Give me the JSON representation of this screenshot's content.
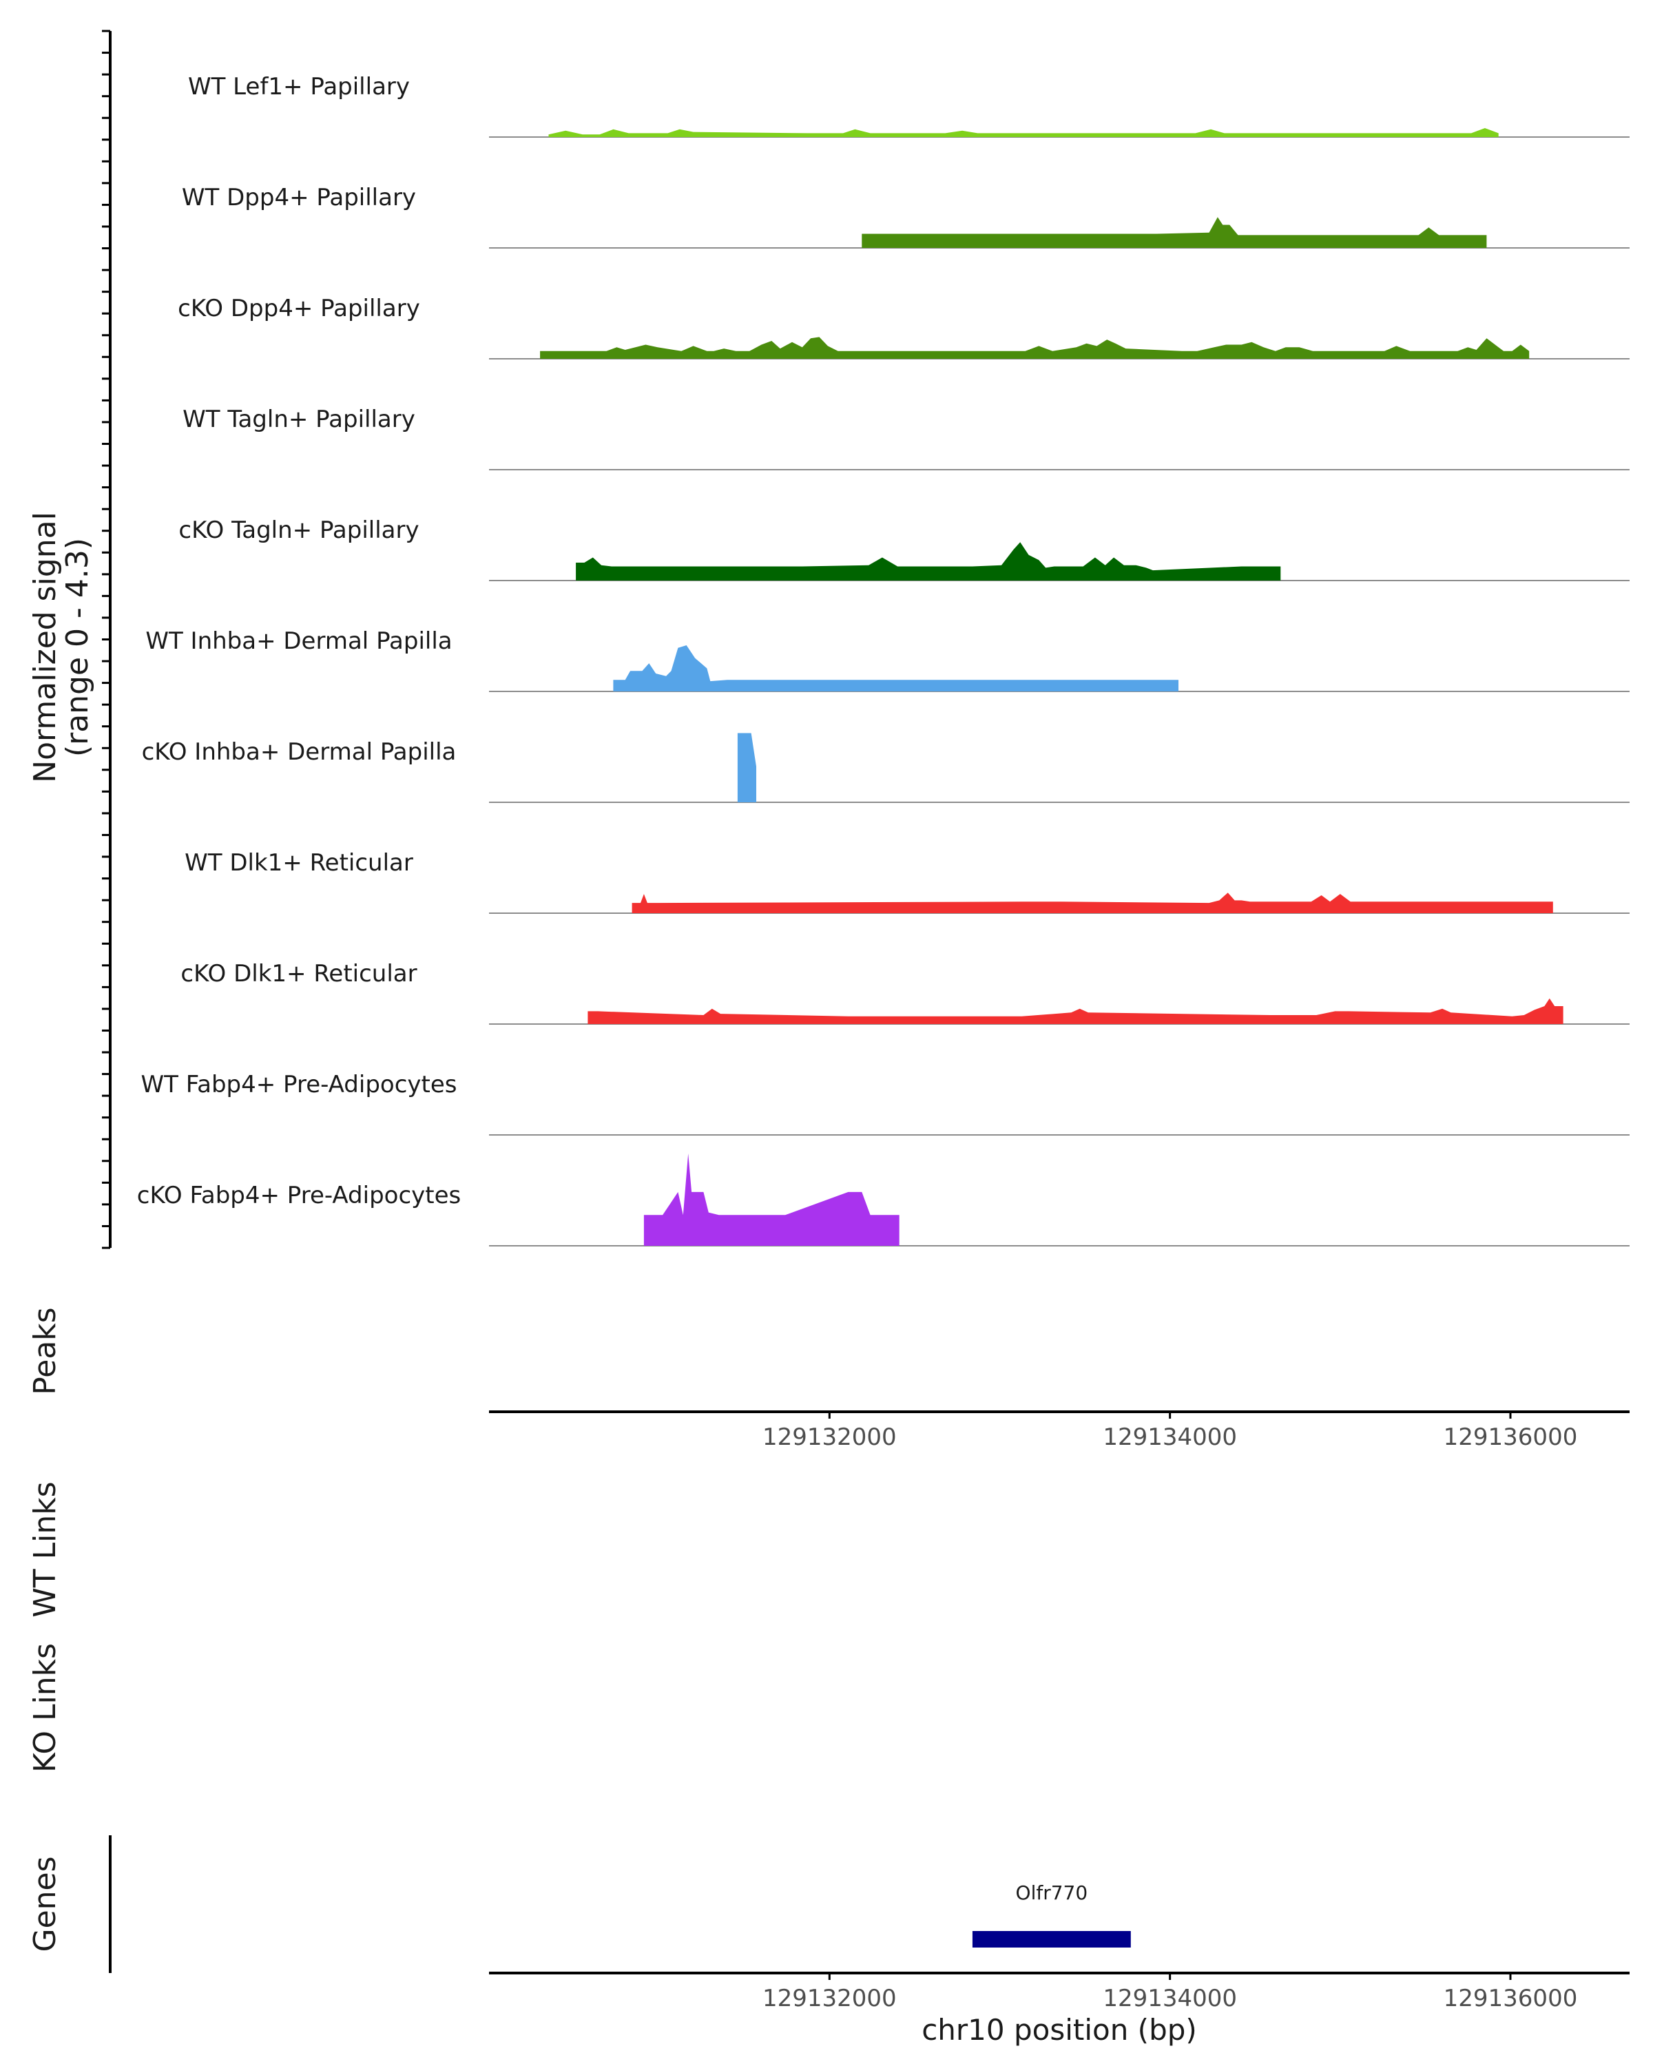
{
  "chart_data": {
    "type": "area",
    "figure": "coverage plot",
    "chromosome": "chr10",
    "xlim": [
      129130000,
      129136700
    ],
    "signal_axis_title": "Normalized signal",
    "signal_range_label": "(range 0 - 4.3)",
    "ymax": 4.3,
    "peaks_label": "Peaks",
    "wt_links_label": "WT Links",
    "ko_links_label": "KO Links",
    "genes_label": "Genes",
    "xlabel": "chr10 position (bp)",
    "x_ticks": [
      129132000,
      129134000,
      129136000
    ],
    "x_tick_labels": [
      "129132000",
      "129134000",
      "129136000"
    ],
    "genes": [
      {
        "name": "Olfr770",
        "start": 129132840,
        "end": 129133770
      }
    ],
    "tracks": [
      {
        "name": "WT Lef1+ Papillary",
        "color": "#7FD11B",
        "points": [
          [
            129130350,
            0.1
          ],
          [
            129130450,
            0.25
          ],
          [
            129130550,
            0.1
          ],
          [
            129130650,
            0.1
          ],
          [
            129130730,
            0.3
          ],
          [
            129130820,
            0.15
          ],
          [
            129131050,
            0.15
          ],
          [
            129131120,
            0.3
          ],
          [
            129131200,
            0.2
          ],
          [
            129131870,
            0.15
          ],
          [
            129131960,
            0.15
          ],
          [
            129132080,
            0.15
          ],
          [
            129132150,
            0.3
          ],
          [
            129132240,
            0.15
          ],
          [
            129132680,
            0.15
          ],
          [
            129132780,
            0.25
          ],
          [
            129132870,
            0.15
          ],
          [
            129132950,
            0.15
          ],
          [
            129133030,
            0.15
          ],
          [
            129134150,
            0.15
          ],
          [
            129134240,
            0.3
          ],
          [
            129134320,
            0.15
          ],
          [
            129135770,
            0.15
          ],
          [
            129135850,
            0.35
          ],
          [
            129135930,
            0.15
          ]
        ]
      },
      {
        "name": "WT Dpp4+ Papillary",
        "color": "#4A8C0C",
        "points": [
          [
            129132190,
            0.55
          ],
          [
            129132280,
            0.55
          ],
          [
            129132410,
            0.55
          ],
          [
            129132490,
            0.55
          ],
          [
            129133660,
            0.55
          ],
          [
            129133740,
            0.55
          ],
          [
            129133850,
            0.55
          ],
          [
            129133920,
            0.55
          ],
          [
            129134230,
            0.6
          ],
          [
            129134280,
            1.2
          ],
          [
            129134310,
            0.9
          ],
          [
            129134350,
            0.9
          ],
          [
            129134400,
            0.5
          ],
          [
            129134470,
            0.5
          ],
          [
            129135460,
            0.5
          ],
          [
            129135520,
            0.8
          ],
          [
            129135580,
            0.5
          ],
          [
            129135640,
            0.5
          ],
          [
            129135700,
            0.5
          ],
          [
            129135770,
            0.5
          ],
          [
            129135860,
            0.5
          ]
        ]
      },
      {
        "name": "cKO Dpp4+ Papillary",
        "color": "#4A8C0C",
        "points": [
          [
            129130300,
            0.3
          ],
          [
            129130400,
            0.3
          ],
          [
            129130490,
            0.3
          ],
          [
            129130580,
            0.3
          ],
          [
            129130690,
            0.3
          ],
          [
            129130750,
            0.45
          ],
          [
            129130800,
            0.35
          ],
          [
            129130860,
            0.45
          ],
          [
            129130920,
            0.55
          ],
          [
            129130990,
            0.45
          ],
          [
            129131130,
            0.3
          ],
          [
            129131200,
            0.5
          ],
          [
            129131280,
            0.3
          ],
          [
            129131320,
            0.3
          ],
          [
            129131380,
            0.4
          ],
          [
            129131450,
            0.3
          ],
          [
            129131530,
            0.3
          ],
          [
            129131600,
            0.55
          ],
          [
            129131660,
            0.7
          ],
          [
            129131710,
            0.4
          ],
          [
            129131780,
            0.65
          ],
          [
            129131840,
            0.45
          ],
          [
            129131890,
            0.8
          ],
          [
            129131940,
            0.85
          ],
          [
            129131990,
            0.5
          ],
          [
            129132050,
            0.3
          ],
          [
            129132280,
            0.3
          ],
          [
            129132360,
            0.3
          ],
          [
            129132840,
            0.3
          ],
          [
            129132900,
            0.3
          ],
          [
            129133150,
            0.3
          ],
          [
            129133230,
            0.5
          ],
          [
            129133310,
            0.3
          ],
          [
            129133450,
            0.45
          ],
          [
            129133510,
            0.6
          ],
          [
            129133570,
            0.5
          ],
          [
            129133630,
            0.75
          ],
          [
            129133680,
            0.6
          ],
          [
            129133740,
            0.4
          ],
          [
            129134070,
            0.3
          ],
          [
            129134160,
            0.3
          ],
          [
            129134260,
            0.45
          ],
          [
            129134330,
            0.55
          ],
          [
            129134420,
            0.55
          ],
          [
            129134480,
            0.65
          ],
          [
            129134550,
            0.45
          ],
          [
            129134620,
            0.3
          ],
          [
            129134680,
            0.45
          ],
          [
            129134760,
            0.45
          ],
          [
            129134840,
            0.3
          ],
          [
            129135260,
            0.3
          ],
          [
            129135330,
            0.5
          ],
          [
            129135410,
            0.3
          ],
          [
            129135690,
            0.3
          ],
          [
            129135750,
            0.45
          ],
          [
            129135800,
            0.35
          ],
          [
            129135860,
            0.8
          ],
          [
            129135920,
            0.5
          ],
          [
            129135960,
            0.3
          ],
          [
            129136010,
            0.3
          ],
          [
            129136060,
            0.55
          ],
          [
            129136110,
            0.3
          ]
        ]
      },
      {
        "name": "WT Tagln+ Papillary",
        "color": "#006400",
        "points": []
      },
      {
        "name": "cKO Tagln+ Papillary",
        "color": "#006400",
        "points": [
          [
            129130510,
            0.7
          ],
          [
            129130560,
            0.7
          ],
          [
            129130610,
            0.9
          ],
          [
            129130660,
            0.6
          ],
          [
            129130720,
            0.55
          ],
          [
            129130790,
            0.55
          ],
          [
            129130890,
            0.55
          ],
          [
            129130960,
            0.55
          ],
          [
            129131690,
            0.55
          ],
          [
            129131840,
            0.55
          ],
          [
            129132230,
            0.6
          ],
          [
            129132310,
            0.9
          ],
          [
            129132400,
            0.55
          ],
          [
            129132770,
            0.55
          ],
          [
            129132840,
            0.55
          ],
          [
            129133010,
            0.6
          ],
          [
            129133080,
            1.2
          ],
          [
            129133120,
            1.5
          ],
          [
            129133170,
            1.0
          ],
          [
            129133230,
            0.8
          ],
          [
            129133270,
            0.5
          ],
          [
            129133320,
            0.55
          ],
          [
            129133380,
            0.55
          ],
          [
            129133490,
            0.55
          ],
          [
            129133560,
            0.9
          ],
          [
            129133620,
            0.6
          ],
          [
            129133670,
            0.9
          ],
          [
            129133730,
            0.6
          ],
          [
            129133800,
            0.6
          ],
          [
            129133860,
            0.5
          ],
          [
            129133900,
            0.4
          ],
          [
            129134420,
            0.55
          ],
          [
            129134500,
            0.55
          ],
          [
            129134580,
            0.55
          ],
          [
            129134650,
            0.55
          ]
        ]
      },
      {
        "name": "WT Inhba+ Dermal Papilla",
        "color": "#56A4E8",
        "points": [
          [
            129130730,
            0.45
          ],
          [
            129130800,
            0.45
          ],
          [
            129130830,
            0.8
          ],
          [
            129130900,
            0.8
          ],
          [
            129130940,
            1.1
          ],
          [
            129130980,
            0.7
          ],
          [
            129131040,
            0.6
          ],
          [
            129131070,
            0.8
          ],
          [
            129131110,
            1.7
          ],
          [
            129131160,
            1.8
          ],
          [
            129131210,
            1.3
          ],
          [
            129131280,
            0.9
          ],
          [
            129131300,
            0.4
          ],
          [
            129131400,
            0.45
          ],
          [
            129131450,
            0.45
          ],
          [
            129132150,
            0.45
          ],
          [
            129132300,
            0.45
          ],
          [
            129132690,
            0.45
          ],
          [
            129132790,
            0.45
          ],
          [
            129132910,
            0.45
          ],
          [
            129132980,
            0.45
          ],
          [
            129133160,
            0.45
          ],
          [
            129133220,
            0.45
          ],
          [
            129133510,
            0.45
          ],
          [
            129133580,
            0.45
          ],
          [
            129133770,
            0.45
          ],
          [
            129133870,
            0.45
          ],
          [
            129133950,
            0.45
          ],
          [
            129134050,
            0.45
          ]
        ]
      },
      {
        "name": "cKO Inhba+ Dermal Papilla",
        "color": "#56A4E8",
        "points": [
          [
            129131460,
            2.7
          ],
          [
            129131540,
            2.7
          ],
          [
            129131570,
            1.4
          ]
        ]
      },
      {
        "name": "WT Dlk1+ Reticular",
        "color": "#F23030",
        "points": [
          [
            129130840,
            0.4
          ],
          [
            129130890,
            0.4
          ],
          [
            129130910,
            0.75
          ],
          [
            129130930,
            0.4
          ],
          [
            129131000,
            0.4
          ],
          [
            129133130,
            0.45
          ],
          [
            129133230,
            0.45
          ],
          [
            129133280,
            0.45
          ],
          [
            129133360,
            0.45
          ],
          [
            129134230,
            0.4
          ],
          [
            129134290,
            0.5
          ],
          [
            129134340,
            0.8
          ],
          [
            129134380,
            0.5
          ],
          [
            129134420,
            0.5
          ],
          [
            129134470,
            0.45
          ],
          [
            129134560,
            0.45
          ],
          [
            129134830,
            0.45
          ],
          [
            129134890,
            0.7
          ],
          [
            129134940,
            0.45
          ],
          [
            129135000,
            0.75
          ],
          [
            129135060,
            0.45
          ],
          [
            129135110,
            0.45
          ],
          [
            129135340,
            0.45
          ],
          [
            129135430,
            0.45
          ],
          [
            129135520,
            0.45
          ],
          [
            129135590,
            0.45
          ],
          [
            129136160,
            0.45
          ],
          [
            129136250,
            0.45
          ]
        ]
      },
      {
        "name": "cKO Dlk1+ Reticular",
        "color": "#F23030",
        "points": [
          [
            129130580,
            0.5
          ],
          [
            129130640,
            0.5
          ],
          [
            129131260,
            0.35
          ],
          [
            129131310,
            0.6
          ],
          [
            129131360,
            0.4
          ],
          [
            129132110,
            0.3
          ],
          [
            129132260,
            0.3
          ],
          [
            129132850,
            0.3
          ],
          [
            129132930,
            0.3
          ],
          [
            129133030,
            0.3
          ],
          [
            129133130,
            0.3
          ],
          [
            129133420,
            0.45
          ],
          [
            129133470,
            0.6
          ],
          [
            129133520,
            0.45
          ],
          [
            129134590,
            0.35
          ],
          [
            129134670,
            0.35
          ],
          [
            129134760,
            0.35
          ],
          [
            129134860,
            0.35
          ],
          [
            129134970,
            0.5
          ],
          [
            129135050,
            0.5
          ],
          [
            129135530,
            0.45
          ],
          [
            129135600,
            0.6
          ],
          [
            129135650,
            0.45
          ],
          [
            129136010,
            0.3
          ],
          [
            129136080,
            0.35
          ],
          [
            129136140,
            0.55
          ],
          [
            129136200,
            0.7
          ],
          [
            129136230,
            1.0
          ],
          [
            129136260,
            0.7
          ],
          [
            129136310,
            0.7
          ]
        ]
      },
      {
        "name": "WT Fabp4+ Pre-Adipocytes",
        "color": "#A933EE",
        "points": []
      },
      {
        "name": "cKO Fabp4+ Pre-Adipocytes",
        "color": "#A933EE",
        "points": [
          [
            129130910,
            1.2
          ],
          [
            129130990,
            1.2
          ],
          [
            129131020,
            1.2
          ],
          [
            129131060,
            1.6
          ],
          [
            129131110,
            2.1
          ],
          [
            129131140,
            1.2
          ],
          [
            129131170,
            3.6
          ],
          [
            129131190,
            2.1
          ],
          [
            129131260,
            2.1
          ],
          [
            129131290,
            1.3
          ],
          [
            129131350,
            1.2
          ],
          [
            129131400,
            1.2
          ],
          [
            129131650,
            1.2
          ],
          [
            129131740,
            1.2
          ],
          [
            129132110,
            2.1
          ],
          [
            129132190,
            2.1
          ],
          [
            129132240,
            1.2
          ],
          [
            129132330,
            1.2
          ],
          [
            129132410,
            1.2
          ]
        ]
      }
    ]
  }
}
